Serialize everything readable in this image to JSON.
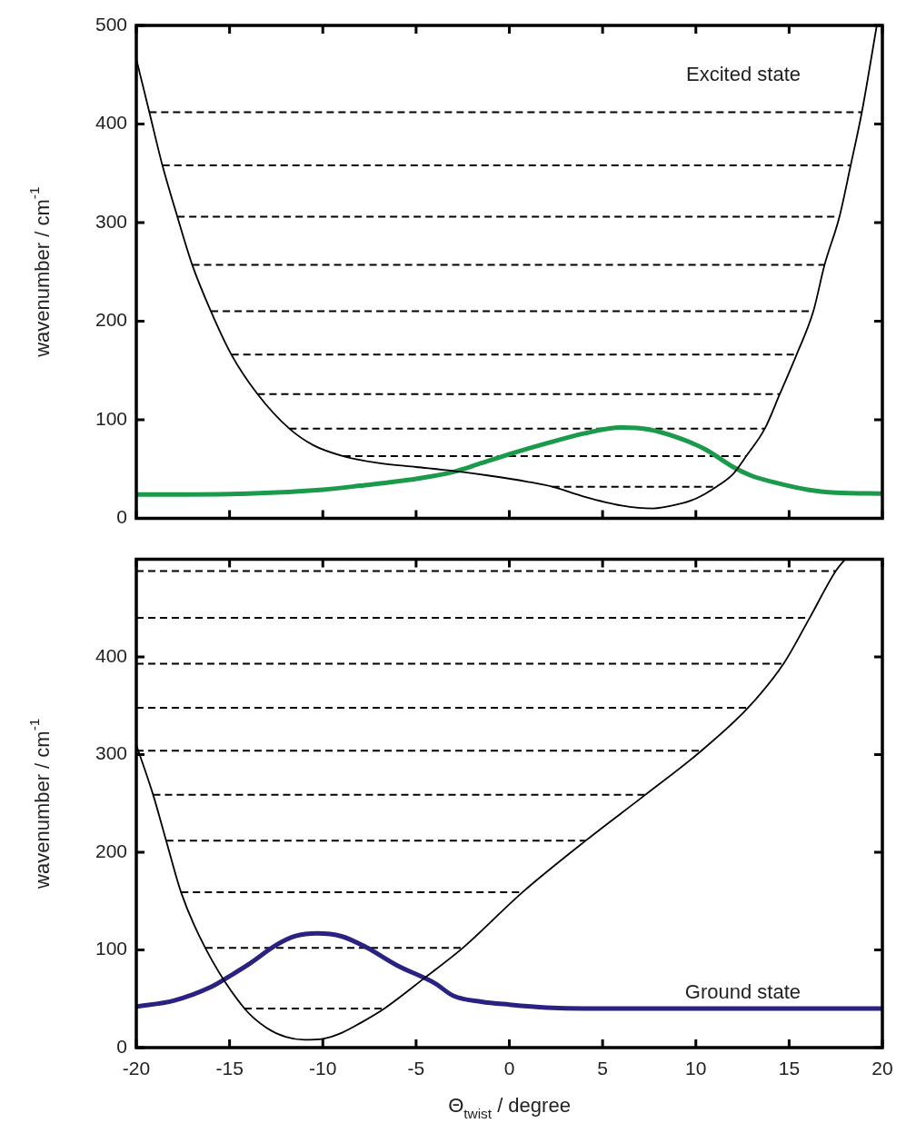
{
  "chart_data": [
    {
      "type": "line",
      "ylabel": "wavenumber / cm$^{-1}$",
      "annotations": [
        "Excited state"
      ],
      "xlim": [
        -20,
        20
      ],
      "xticks": [
        -20,
        -15,
        -10,
        -5,
        0,
        5,
        10,
        15,
        20
      ],
      "ylim": [
        0,
        500
      ],
      "yticks": [
        0,
        100,
        200,
        300,
        400,
        500
      ],
      "tick_labels": "y",
      "grid": false,
      "legend": false,
      "marker": "none",
      "line_style": "solid",
      "series": [
        {
          "color": "#000000",
          "x": [
            -20,
            -19.3,
            -18.6,
            -17.8,
            -17,
            -16,
            -14.9,
            -13.5,
            -11.8,
            -10.5,
            -8.9,
            -7,
            -5,
            -3,
            -1,
            1,
            2.3,
            4,
            6,
            7.7,
            9,
            10,
            11.1,
            12,
            12.7,
            13.7,
            14.5,
            15.4,
            16.3,
            16.9,
            17.7,
            18.3,
            18.9,
            19.7
          ],
          "values": [
            466,
            412,
            358,
            306,
            257,
            210,
            166,
            126,
            91,
            74,
            63,
            56,
            52,
            48,
            43,
            37,
            32,
            22,
            13,
            10,
            14,
            20,
            32,
            45,
            63,
            91,
            126,
            166,
            210,
            257,
            306,
            358,
            412,
            500
          ]
        },
        {
          "color": "#1a9a4a",
          "x": [
            -20,
            -14,
            -10,
            -8,
            -5,
            -3,
            -1.5,
            0,
            2,
            4,
            6,
            7.5,
            9,
            10.5,
            12,
            13,
            14.3,
            16,
            17.5,
            20
          ],
          "values": [
            24,
            25,
            29,
            33,
            40,
            47,
            56,
            65,
            76,
            86,
            92,
            90,
            82,
            70,
            52,
            43,
            36,
            29,
            26,
            25
          ]
        },
        {
          "color": "#000000",
          "line_style": "dashed",
          "x": [
            -19.3,
            18.9
          ],
          "values": [
            412,
            412
          ]
        },
        {
          "color": "#000000",
          "line_style": "dashed",
          "x": [
            -18.6,
            18.3
          ],
          "values": [
            358,
            358
          ]
        },
        {
          "color": "#000000",
          "line_style": "dashed",
          "x": [
            -17.8,
            17.7
          ],
          "values": [
            306,
            306
          ]
        },
        {
          "color": "#000000",
          "line_style": "dashed",
          "x": [
            -17,
            16.9
          ],
          "values": [
            257,
            257
          ]
        },
        {
          "color": "#000000",
          "line_style": "dashed",
          "x": [
            -16,
            16.3
          ],
          "values": [
            210,
            210
          ]
        },
        {
          "color": "#000000",
          "line_style": "dashed",
          "x": [
            -14.9,
            15.4
          ],
          "values": [
            166,
            166
          ]
        },
        {
          "color": "#000000",
          "line_style": "dashed",
          "x": [
            -13.5,
            14.5
          ],
          "values": [
            126,
            126
          ]
        },
        {
          "color": "#000000",
          "line_style": "dashed",
          "x": [
            -11.8,
            13.7
          ],
          "values": [
            91,
            91
          ]
        },
        {
          "color": "#000000",
          "line_style": "dashed",
          "x": [
            -8.9,
            12.7
          ],
          "values": [
            63,
            63
          ]
        },
        {
          "color": "#000000",
          "line_style": "dashed",
          "x": [
            2.3,
            11.1
          ],
          "values": [
            32,
            32
          ]
        }
      ]
    },
    {
      "type": "line",
      "xlabel": "Θ$_{twist}$ / degree",
      "ylabel": "wavenumber / cm$^{-1}$",
      "annotations": [
        "Ground state"
      ],
      "xlim": [
        -20,
        20
      ],
      "xticks": [
        -20,
        -15,
        -10,
        -5,
        0,
        5,
        10,
        15,
        20
      ],
      "ylim": [
        0,
        500
      ],
      "yticks": [
        0,
        100,
        200,
        300,
        400
      ],
      "grid": false,
      "legend": false,
      "marker": "none",
      "line_style": "solid",
      "series": [
        {
          "color": "#000000",
          "x": [
            -20,
            -19.1,
            -18.4,
            -17.6,
            -16.3,
            -14.2,
            -13,
            -12,
            -11,
            -10,
            -9,
            -8,
            -6.7,
            -4.5,
            -2.5,
            0.7,
            4.1,
            7.3,
            10.3,
            12.8,
            14.7,
            16.1,
            17.5,
            18
          ],
          "values": [
            310,
            259,
            212,
            159,
            102,
            40,
            20,
            11,
            8,
            9,
            15,
            25,
            40,
            72,
            102,
            159,
            212,
            259,
            304,
            348,
            393,
            440,
            488,
            500
          ]
        },
        {
          "color": "#2a2280",
          "x": [
            -20,
            -18,
            -16,
            -15.1,
            -14,
            -12.5,
            -11.5,
            -10.3,
            -9,
            -7.7,
            -6,
            -4,
            -3,
            -1.5,
            0,
            2,
            4,
            20
          ],
          "values": [
            42,
            48,
            62,
            72,
            85,
            105,
            114,
            117,
            114,
            103,
            84,
            66,
            53,
            47,
            44,
            41,
            40,
            40
          ]
        },
        {
          "color": "#000000",
          "line_style": "dashed",
          "x": [
            -20,
            17.5
          ],
          "values": [
            488,
            488
          ]
        },
        {
          "color": "#000000",
          "line_style": "dashed",
          "x": [
            -20,
            16.1
          ],
          "values": [
            440,
            440
          ]
        },
        {
          "color": "#000000",
          "line_style": "dashed",
          "x": [
            -20,
            14.7
          ],
          "values": [
            393,
            393
          ]
        },
        {
          "color": "#000000",
          "line_style": "dashed",
          "x": [
            -20,
            12.8
          ],
          "values": [
            348,
            348
          ]
        },
        {
          "color": "#000000",
          "line_style": "dashed",
          "x": [
            -20,
            10.3
          ],
          "values": [
            304,
            304
          ]
        },
        {
          "color": "#000000",
          "line_style": "dashed",
          "x": [
            -19.1,
            7.3
          ],
          "values": [
            259,
            259
          ]
        },
        {
          "color": "#000000",
          "line_style": "dashed",
          "x": [
            -18.4,
            4.1
          ],
          "values": [
            212,
            212
          ]
        },
        {
          "color": "#000000",
          "line_style": "dashed",
          "x": [
            -17.6,
            0.7
          ],
          "values": [
            159,
            159
          ]
        },
        {
          "color": "#000000",
          "line_style": "dashed",
          "x": [
            -16.3,
            -2.5
          ],
          "values": [
            102,
            102
          ]
        },
        {
          "color": "#000000",
          "line_style": "dashed",
          "x": [
            -14.2,
            -6.7
          ],
          "values": [
            40,
            40
          ]
        }
      ]
    }
  ]
}
